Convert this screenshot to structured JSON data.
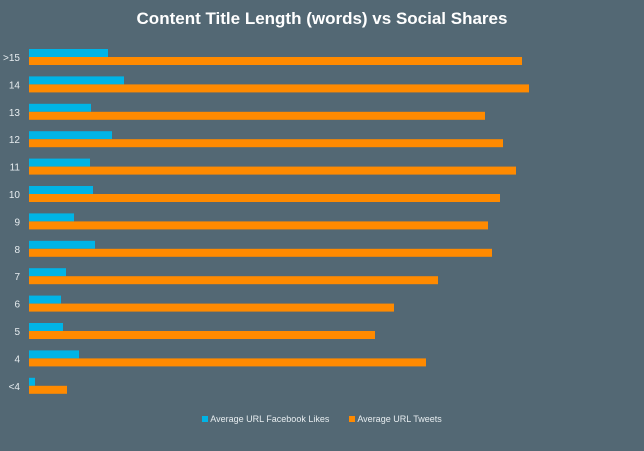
{
  "chart_data": {
    "type": "bar",
    "orientation": "horizontal",
    "title": "Content Title Length (words) vs Social Shares",
    "categories": [
      ">15",
      "14",
      "13",
      "12",
      "11",
      "10",
      "9",
      "8",
      "7",
      "6",
      "5",
      "4",
      "<4"
    ],
    "series": [
      {
        "name": "Average URL Facebook Likes",
        "color": "#00b4e6",
        "values": [
          79,
          95,
          62,
          83,
          61,
          64,
          45,
          66,
          37,
          32,
          34,
          50,
          6
        ]
      },
      {
        "name": "Average URL Tweets",
        "color": "#ff8a00",
        "values": [
          493,
          500,
          456,
          474,
          487,
          471,
          459,
          463,
          409,
          365,
          346,
          397,
          38
        ]
      }
    ],
    "value_axis_shown": false,
    "xlim": [
      0,
      500
    ],
    "grid": false,
    "legend_position": "bottom",
    "background": "#536874"
  }
}
